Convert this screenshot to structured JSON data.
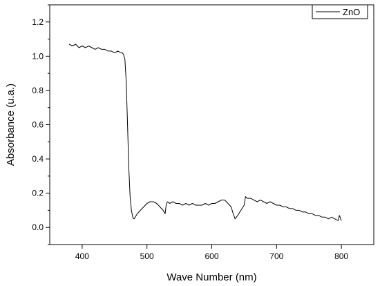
{
  "chart_data": {
    "type": "line",
    "title": "",
    "xlabel": "Wave Number (nm)",
    "ylabel": "Absorbance (u.a.)",
    "xlim": [
      350,
      850
    ],
    "ylim": [
      -0.1,
      1.3
    ],
    "x_ticks": [
      400,
      500,
      600,
      700,
      800
    ],
    "y_ticks": [
      0.0,
      0.2,
      0.4,
      0.6,
      0.8,
      1.0,
      1.2
    ],
    "x_tick_labels": [
      "400",
      "500",
      "600",
      "700",
      "800"
    ],
    "y_tick_labels": [
      "0.0",
      "0.2",
      "0.4",
      "0.6",
      "0.8",
      "1.0",
      "1.2"
    ],
    "grid": false,
    "legend_position": "top-right",
    "series": [
      {
        "name": "ZnO",
        "color": "#000000",
        "x": [
          380,
          385,
          390,
          395,
          400,
          405,
          410,
          415,
          420,
          425,
          430,
          435,
          440,
          445,
          450,
          455,
          460,
          462,
          464,
          466,
          468,
          470,
          472,
          474,
          476,
          478,
          480,
          482,
          485,
          490,
          495,
          500,
          505,
          510,
          515,
          520,
          525,
          528,
          530,
          532,
          535,
          540,
          545,
          550,
          555,
          560,
          565,
          570,
          575,
          580,
          585,
          590,
          595,
          600,
          605,
          610,
          615,
          620,
          625,
          630,
          633,
          636,
          640,
          645,
          650,
          652,
          655,
          660,
          665,
          670,
          675,
          680,
          685,
          690,
          695,
          700,
          705,
          710,
          715,
          720,
          725,
          730,
          735,
          740,
          745,
          750,
          755,
          760,
          765,
          770,
          775,
          780,
          785,
          790,
          795,
          797,
          800
        ],
        "y": [
          1.07,
          1.06,
          1.07,
          1.05,
          1.06,
          1.05,
          1.06,
          1.05,
          1.04,
          1.05,
          1.04,
          1.04,
          1.03,
          1.03,
          1.02,
          1.03,
          1.02,
          1.02,
          1.01,
          0.98,
          0.85,
          0.6,
          0.35,
          0.18,
          0.1,
          0.06,
          0.05,
          0.06,
          0.08,
          0.1,
          0.12,
          0.14,
          0.15,
          0.15,
          0.14,
          0.12,
          0.1,
          0.08,
          0.14,
          0.15,
          0.14,
          0.15,
          0.14,
          0.14,
          0.13,
          0.14,
          0.13,
          0.14,
          0.13,
          0.13,
          0.13,
          0.14,
          0.13,
          0.14,
          0.14,
          0.15,
          0.16,
          0.16,
          0.14,
          0.12,
          0.08,
          0.05,
          0.07,
          0.1,
          0.13,
          0.18,
          0.17,
          0.17,
          0.16,
          0.15,
          0.16,
          0.15,
          0.14,
          0.15,
          0.14,
          0.13,
          0.13,
          0.12,
          0.12,
          0.11,
          0.11,
          0.1,
          0.1,
          0.09,
          0.09,
          0.08,
          0.08,
          0.07,
          0.07,
          0.06,
          0.06,
          0.05,
          0.06,
          0.05,
          0.04,
          0.07,
          0.04
        ]
      }
    ]
  }
}
